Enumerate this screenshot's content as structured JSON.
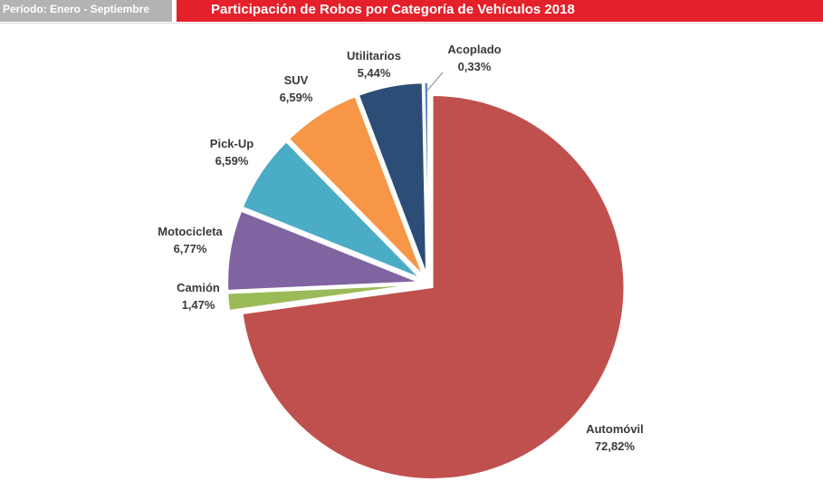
{
  "header": {
    "period": "Período: Enero - Septiembre",
    "title": "Participación de Robos por Categoría de Vehículos 2018"
  },
  "chart_data": {
    "type": "pie",
    "title": "Participación de Robos por Categoría de Vehículos 2018",
    "slices": [
      {
        "label": "Automóvil",
        "value": 72.82,
        "text": "72,82%",
        "color": "#c0504d",
        "key": "automovil"
      },
      {
        "label": "Camión",
        "value": 1.47,
        "text": "1,47%",
        "color": "#9bbb59",
        "key": "camion"
      },
      {
        "label": "Motocicleta",
        "value": 6.77,
        "text": "6,77%",
        "color": "#8064a2",
        "key": "motocicleta"
      },
      {
        "label": "Pick-Up",
        "value": 6.59,
        "text": "6,59%",
        "color": "#4bacc6",
        "key": "pick-up"
      },
      {
        "label": "SUV",
        "value": 6.59,
        "text": "6,59%",
        "color": "#f79646",
        "key": "suv"
      },
      {
        "label": "Utilitarios",
        "value": 5.44,
        "text": "5,44%",
        "color": "#2c4d75",
        "key": "utilitarios"
      },
      {
        "label": "Acoplado",
        "value": 0.33,
        "text": "0,33%",
        "color": "#4f81bd",
        "key": "acoplado"
      }
    ]
  }
}
